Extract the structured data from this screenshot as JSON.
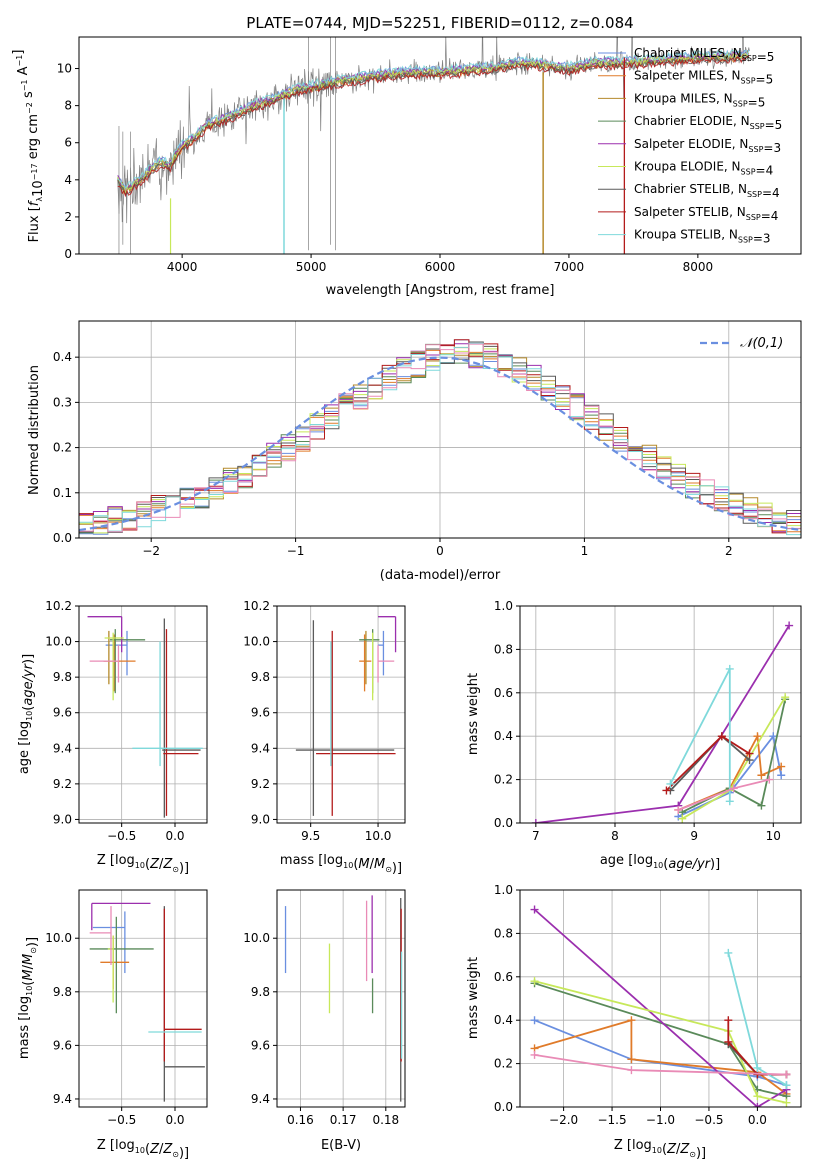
{
  "figure": {
    "title": "PLATE=0744, MJD=52251, FIBERID=0112, z=0.084"
  },
  "colors": {
    "Chabrier MILES": "#6a8fe0",
    "Salpeter MILES": "#e07b2a",
    "Kroupa MILES": "#b58a2b",
    "Chabrier ELODIE": "#5a8a5a",
    "Salpeter ELODIE": "#9b2fae",
    "Kroupa ELODIE": "#c7e85a",
    "Chabrier STELIB": "#5a5a5a",
    "Salpeter STELIB": "#b31b1b",
    "Kroupa STELIB": "#7fd9db",
    "data": "#808080",
    "pink": "#e98bb6",
    "normal": "#6a8fe0"
  },
  "chart_data": [
    {
      "id": "spectrum",
      "type": "line",
      "title": "PLATE=0744, MJD=52251, FIBERID=0112, z=0.084",
      "xlabel": "wavelength [Angstrom, rest frame]",
      "ylabel": "Flux [f_λ10^-17 erg cm^-2 s^-1 A^-1]",
      "xlim": [
        3200,
        8800
      ],
      "ylim": [
        0,
        11.7
      ],
      "xticks": [
        4000,
        5000,
        6000,
        7000,
        8000
      ],
      "yticks": [
        0,
        2,
        4,
        6,
        8,
        10
      ],
      "grid": false,
      "legend_position": "right",
      "data_shape": {
        "x": [
          3500,
          3560,
          3640,
          3700,
          3760,
          3840,
          3900,
          3960,
          4000,
          4100,
          4200,
          4300,
          4400,
          4500,
          4600,
          4700,
          4800,
          4900,
          5000,
          5200,
          5400,
          5600,
          5800,
          6000,
          6200,
          6400,
          6600,
          6800,
          7000,
          7200,
          7400,
          7600,
          7800,
          8000,
          8200,
          8400
        ],
        "y": [
          4.0,
          3.4,
          3.8,
          4.1,
          4.6,
          5.0,
          4.7,
          5.4,
          5.8,
          6.3,
          7.0,
          7.2,
          7.5,
          7.8,
          8.1,
          8.3,
          8.6,
          8.9,
          9.0,
          9.3,
          9.5,
          9.7,
          9.8,
          9.8,
          9.9,
          10.0,
          10.3,
          10.2,
          10.0,
          10.3,
          10.3,
          10.4,
          10.5,
          10.6,
          10.6,
          10.7
        ]
      },
      "series": [
        {
          "name": "Chabrier MILES, N_SSP=5"
        },
        {
          "name": "Salpeter MILES, N_SSP=5"
        },
        {
          "name": "Kroupa MILES, N_SSP=5"
        },
        {
          "name": "Chabrier ELODIE, N_SSP=5"
        },
        {
          "name": "Salpeter ELODIE, N_SSP=3"
        },
        {
          "name": "Kroupa ELODIE, N_SSP=4"
        },
        {
          "name": "Chabrier STELIB, N_SSP=4"
        },
        {
          "name": "Salpeter STELIB, N_SSP=4"
        },
        {
          "name": "Kroupa STELIB, N_SSP=3"
        }
      ]
    },
    {
      "id": "residuals",
      "type": "line",
      "xlabel": "(data-model)/error",
      "ylabel": "Normed distribution",
      "xlim": [
        -2.5,
        2.5
      ],
      "ylim": [
        0,
        0.48
      ],
      "xticks": [
        -2,
        -1,
        0,
        1,
        2
      ],
      "yticks": [
        0.0,
        0.1,
        0.2,
        0.3,
        0.4
      ],
      "grid": true,
      "legend_position": "top-right",
      "legend": [
        "𝒩(0,1)"
      ],
      "bins": {
        "start": -2.5,
        "width": 0.1,
        "count": 50
      },
      "histogram_mean": [
        0.025,
        0.03,
        0.04,
        0.045,
        0.05,
        0.065,
        0.075,
        0.085,
        0.095,
        0.11,
        0.125,
        0.14,
        0.16,
        0.18,
        0.2,
        0.22,
        0.245,
        0.27,
        0.29,
        0.315,
        0.335,
        0.355,
        0.37,
        0.385,
        0.4,
        0.405,
        0.41,
        0.405,
        0.4,
        0.385,
        0.37,
        0.355,
        0.335,
        0.31,
        0.29,
        0.265,
        0.245,
        0.22,
        0.195,
        0.175,
        0.155,
        0.135,
        0.115,
        0.1,
        0.085,
        0.07,
        0.06,
        0.05,
        0.04,
        0.035
      ]
    },
    {
      "id": "age-vs-Z",
      "type": "scatter",
      "xlabel": "Z [log10(Z/Z⊙)]",
      "ylabel": "age  [log10(age/yr)]",
      "xlim": [
        -0.9,
        0.3
      ],
      "ylim": [
        8.98,
        10.2
      ],
      "xticks": [
        -0.5,
        0.0
      ],
      "yticks": [
        9.0,
        9.2,
        9.4,
        9.6,
        9.8,
        10.0,
        10.2
      ],
      "grid": true,
      "points": [
        {
          "series": "Chabrier MILES",
          "x": -0.45,
          "y": 9.98,
          "xerr": [
            0.2,
            0.0
          ],
          "yerr": [
            0.17,
            0.08
          ]
        },
        {
          "series": "Salpeter MILES",
          "x": -0.57,
          "y": 9.89,
          "xerr": [
            0.1,
            0.2
          ],
          "yerr": [
            0.17,
            0.15
          ]
        },
        {
          "series": "Kroupa MILES",
          "x": -0.62,
          "y": 10.0,
          "xerr": [
            0.0,
            0.0
          ],
          "yerr": [
            0.24,
            0.06
          ]
        },
        {
          "series": "Chabrier ELODIE",
          "x": -0.56,
          "y": 10.01,
          "xerr": [
            0.05,
            0.28
          ],
          "yerr": [
            0.3,
            0.06
          ]
        },
        {
          "series": "Salpeter ELODIE",
          "x": -0.5,
          "y": 10.14,
          "xerr": [
            0.32,
            0.0
          ],
          "yerr": [
            0.2,
            0.0
          ]
        },
        {
          "series": "Kroupa ELODIE",
          "x": -0.58,
          "y": 10.02,
          "xerr": [
            0.08,
            0.1
          ],
          "yerr": [
            0.35,
            0.03
          ]
        },
        {
          "series": "Chabrier STELIB",
          "x": -0.1,
          "y": 9.39,
          "xerr": [
            0.02,
            0.34
          ],
          "yerr": [
            0.38,
            0.74
          ]
        },
        {
          "series": "Salpeter STELIB",
          "x": -0.08,
          "y": 9.37,
          "xerr": [
            0.03,
            0.3
          ],
          "yerr": [
            0.35,
            0.7
          ]
        },
        {
          "series": "Kroupa STELIB",
          "x": -0.14,
          "y": 9.4,
          "xerr": [
            0.26,
            0.4
          ],
          "yerr": [
            0.1,
            0.6
          ]
        },
        {
          "series": "pink",
          "x": -0.53,
          "y": 9.89,
          "xerr": [
            0.27,
            0.0
          ],
          "yerr": [
            0.12,
            0.09
          ]
        }
      ]
    },
    {
      "id": "age-vs-mass",
      "type": "scatter",
      "xlabel": "mass [log10(M/M⊙)]",
      "xlim": [
        9.25,
        10.2
      ],
      "ylim": [
        8.98,
        10.2
      ],
      "xticks": [
        9.5,
        10.0
      ],
      "yticks": [
        9.0,
        9.2,
        9.4,
        9.6,
        9.8,
        10.0,
        10.2
      ],
      "grid": true,
      "points": [
        {
          "series": "Chabrier MILES",
          "x": 10.04,
          "y": 9.98,
          "xerr": [
            0.04,
            0.0
          ],
          "yerr": [
            0.17,
            0.08
          ]
        },
        {
          "series": "Salpeter MILES",
          "x": 9.9,
          "y": 9.89,
          "xerr": [
            0.04,
            0.05
          ],
          "yerr": [
            0.17,
            0.15
          ]
        },
        {
          "series": "Kroupa MILES",
          "x": 9.91,
          "y": 10.0,
          "xerr": [
            0.0,
            0.0
          ],
          "yerr": [
            0.24,
            0.06
          ]
        },
        {
          "series": "Chabrier ELODIE",
          "x": 9.96,
          "y": 10.01,
          "xerr": [
            0.1,
            0.05
          ],
          "yerr": [
            0.3,
            0.06
          ]
        },
        {
          "series": "Salpeter ELODIE",
          "x": 10.13,
          "y": 10.14,
          "xerr": [
            0.13,
            0.0
          ],
          "yerr": [
            0.2,
            0.0
          ]
        },
        {
          "series": "Kroupa ELODIE",
          "x": 9.96,
          "y": 10.02,
          "xerr": [
            0.0,
            0.0
          ],
          "yerr": [
            0.35,
            0.03
          ]
        },
        {
          "series": "Chabrier STELIB",
          "x": 9.52,
          "y": 9.39,
          "xerr": [
            0.13,
            0.6
          ],
          "yerr": [
            0.37,
            0.73
          ]
        },
        {
          "series": "Salpeter STELIB",
          "x": 9.66,
          "y": 9.37,
          "xerr": [
            0.12,
            0.47
          ],
          "yerr": [
            0.35,
            0.69
          ]
        },
        {
          "series": "Kroupa STELIB",
          "x": 9.65,
          "y": 9.4,
          "xerr": [
            0.0,
            0.0
          ],
          "yerr": [
            0.1,
            0.6
          ]
        },
        {
          "series": "pink",
          "x": 10.0,
          "y": 9.89,
          "xerr": [
            0.0,
            0.12
          ],
          "yerr": [
            0.12,
            0.09
          ]
        }
      ]
    },
    {
      "id": "mass-weight-vs-age",
      "type": "line",
      "xlabel": "age  [log10(age/yr)]",
      "ylabel": "mass weight",
      "xlim": [
        6.8,
        10.35
      ],
      "ylim": [
        0,
        1.0
      ],
      "xticks": [
        7,
        8,
        9,
        10
      ],
      "yticks": [
        0.0,
        0.2,
        0.4,
        0.6,
        0.8,
        1.0
      ],
      "grid": true,
      "series": [
        {
          "series": "Chabrier MILES",
          "x": [
            8.8,
            9.45,
            10.0,
            10.1
          ],
          "y": [
            0.03,
            0.14,
            0.4,
            0.22
          ]
        },
        {
          "series": "Salpeter MILES",
          "x": [
            8.8,
            9.45,
            9.8,
            9.85,
            10.1
          ],
          "y": [
            0.06,
            0.16,
            0.4,
            0.22,
            0.26
          ]
        },
        {
          "series": "Chabrier ELODIE",
          "x": [
            8.85,
            9.45,
            9.85,
            10.15
          ],
          "y": [
            0.05,
            0.16,
            0.08,
            0.57
          ]
        },
        {
          "series": "Salpeter ELODIE",
          "x": [
            7.0,
            8.8,
            10.2
          ],
          "y": [
            0.0,
            0.08,
            0.91
          ]
        },
        {
          "series": "Kroupa ELODIE",
          "x": [
            8.85,
            9.45,
            10.15
          ],
          "y": [
            0.02,
            0.15,
            0.58
          ]
        },
        {
          "series": "Chabrier STELIB",
          "x": [
            8.7,
            9.35,
            9.7
          ],
          "y": [
            0.15,
            0.4,
            0.29
          ]
        },
        {
          "series": "Salpeter STELIB",
          "x": [
            8.65,
            9.35,
            9.7
          ],
          "y": [
            0.15,
            0.4,
            0.32
          ]
        },
        {
          "series": "Kroupa STELIB",
          "x": [
            8.7,
            9.45,
            9.45
          ],
          "y": [
            0.18,
            0.71,
            0.1
          ]
        },
        {
          "series": "pink",
          "x": [
            8.8,
            9.5,
            9.95
          ],
          "y": [
            0.06,
            0.16,
            0.2
          ]
        }
      ]
    },
    {
      "id": "mass-vs-Z",
      "type": "scatter",
      "xlabel": "Z [log10(Z/Z⊙)]",
      "ylabel": "mass [log10(M/M⊙)]",
      "xlim": [
        -0.9,
        0.3
      ],
      "ylim": [
        9.37,
        10.18
      ],
      "xticks": [
        -0.5,
        0.0
      ],
      "yticks": [
        9.4,
        9.6,
        9.8,
        10.0
      ],
      "grid": true,
      "points": [
        {
          "series": "Chabrier MILES",
          "x": -0.47,
          "y": 10.04,
          "xerr": [
            0.3,
            0.0
          ],
          "yerr": [
            0.17,
            0.06
          ]
        },
        {
          "series": "Salpeter MILES",
          "x": -0.58,
          "y": 9.91,
          "xerr": [
            0.12,
            0.15
          ],
          "yerr": [
            0.1,
            0.1
          ]
        },
        {
          "series": "Kroupa MILES",
          "x": -0.63,
          "y": 9.9,
          "xerr": [
            0.0,
            0.0
          ],
          "yerr": [
            0.0,
            0.0
          ]
        },
        {
          "series": "Chabrier ELODIE",
          "x": -0.55,
          "y": 9.96,
          "xerr": [
            0.25,
            0.35
          ],
          "yerr": [
            0.24,
            0.12
          ]
        },
        {
          "series": "Salpeter ELODIE",
          "x": -0.78,
          "y": 10.13,
          "xerr": [
            0.0,
            0.55
          ],
          "yerr": [
            0.1,
            0.0
          ]
        },
        {
          "series": "Kroupa ELODIE",
          "x": -0.58,
          "y": 9.96,
          "xerr": [
            0.05,
            0.0
          ],
          "yerr": [
            0.2,
            0.05
          ]
        },
        {
          "series": "Chabrier STELIB",
          "x": -0.1,
          "y": 9.52,
          "xerr": [
            0.0,
            0.38
          ],
          "yerr": [
            0.13,
            0.6
          ]
        },
        {
          "series": "Salpeter STELIB",
          "x": -0.1,
          "y": 9.66,
          "xerr": [
            0.0,
            0.35
          ],
          "yerr": [
            0.12,
            0.45
          ]
        },
        {
          "series": "Kroupa STELIB",
          "x": -0.25,
          "y": 9.65,
          "xerr": [
            0.0,
            0.5
          ],
          "yerr": [
            0.0,
            0.0
          ]
        },
        {
          "series": "pink",
          "x": -0.6,
          "y": 10.02,
          "xerr": [
            0.2,
            0.0
          ],
          "yerr": [
            0.12,
            0.1
          ]
        }
      ]
    },
    {
      "id": "mass-vs-ebv",
      "type": "scatter",
      "xlabel": "E(B-V)",
      "xlim": [
        0.1545,
        0.1845
      ],
      "ylim": [
        9.37,
        10.18
      ],
      "xticks": [
        0.16,
        0.17,
        0.18
      ],
      "yticks": [
        9.4,
        9.6,
        9.8,
        10.0
      ],
      "grid": true,
      "points": [
        {
          "series": "Chabrier MILES",
          "x": 0.1565,
          "y": 10.04,
          "yerr": [
            0.17,
            0.08
          ]
        },
        {
          "series": "Kroupa ELODIE",
          "x": 0.1668,
          "y": 9.9,
          "yerr": [
            0.18,
            0.08
          ]
        },
        {
          "series": "pink",
          "x": 0.1755,
          "y": 10.02,
          "yerr": [
            0.18,
            0.12
          ]
        },
        {
          "series": "Salpeter ELODIE",
          "x": 0.1768,
          "y": 10.0,
          "yerr": [
            0.13,
            0.16
          ]
        },
        {
          "series": "Chabrier ELODIE",
          "x": 0.1769,
          "y": 9.85,
          "yerr": [
            0.13,
            0.0
          ]
        },
        {
          "series": "Chabrier STELIB",
          "x": 0.1835,
          "y": 9.52,
          "yerr": [
            0.13,
            0.63
          ]
        },
        {
          "series": "Salpeter STELIB",
          "x": 0.1836,
          "y": 9.66,
          "yerr": [
            0.12,
            0.45
          ]
        },
        {
          "series": "Kroupa STELIB",
          "x": 0.1837,
          "y": 9.65,
          "yerr": [
            0.1,
            0.3
          ]
        }
      ]
    },
    {
      "id": "mass-weight-vs-Z",
      "type": "line",
      "xlabel": "Z [log10(Z/Z⊙)]",
      "ylabel": "mass weight",
      "xlim": [
        -2.45,
        0.45
      ],
      "ylim": [
        0,
        1.0
      ],
      "xticks": [
        -2.0,
        -1.5,
        -1.0,
        -0.5,
        0.0
      ],
      "yticks": [
        0.0,
        0.2,
        0.4,
        0.6,
        0.8,
        1.0
      ],
      "grid": true,
      "series": [
        {
          "series": "Chabrier MILES",
          "x": [
            -2.3,
            -1.3,
            0.0,
            0.3
          ],
          "y": [
            0.4,
            0.22,
            0.14,
            0.1
          ]
        },
        {
          "series": "Salpeter MILES",
          "x": [
            -2.3,
            -1.3,
            -1.3,
            0.0,
            0.3
          ],
          "y": [
            0.27,
            0.4,
            0.22,
            0.16,
            0.06
          ]
        },
        {
          "series": "Chabrier ELODIE",
          "x": [
            -2.3,
            -0.3,
            0.0,
            0.3
          ],
          "y": [
            0.57,
            0.29,
            0.08,
            0.05
          ]
        },
        {
          "series": "Salpeter ELODIE",
          "x": [
            -2.3,
            0.0,
            0.3
          ],
          "y": [
            0.91,
            0.0,
            0.08
          ]
        },
        {
          "series": "Kroupa ELODIE",
          "x": [
            -2.3,
            -0.3,
            0.0,
            0.3
          ],
          "y": [
            0.58,
            0.35,
            0.05,
            0.02
          ]
        },
        {
          "series": "Chabrier STELIB",
          "x": [
            -0.3,
            0.0,
            0.3
          ],
          "y": [
            0.29,
            0.15,
            0.15
          ]
        },
        {
          "series": "Salpeter STELIB",
          "x": [
            -0.3,
            -0.3,
            0.0,
            0.3
          ],
          "y": [
            0.4,
            0.3,
            0.15,
            0.15
          ]
        },
        {
          "series": "Kroupa STELIB",
          "x": [
            -0.3,
            0.0,
            0.3
          ],
          "y": [
            0.71,
            0.18,
            0.1
          ]
        },
        {
          "series": "pink",
          "x": [
            -2.3,
            -1.3,
            0.3
          ],
          "y": [
            0.24,
            0.17,
            0.15
          ]
        }
      ]
    }
  ]
}
